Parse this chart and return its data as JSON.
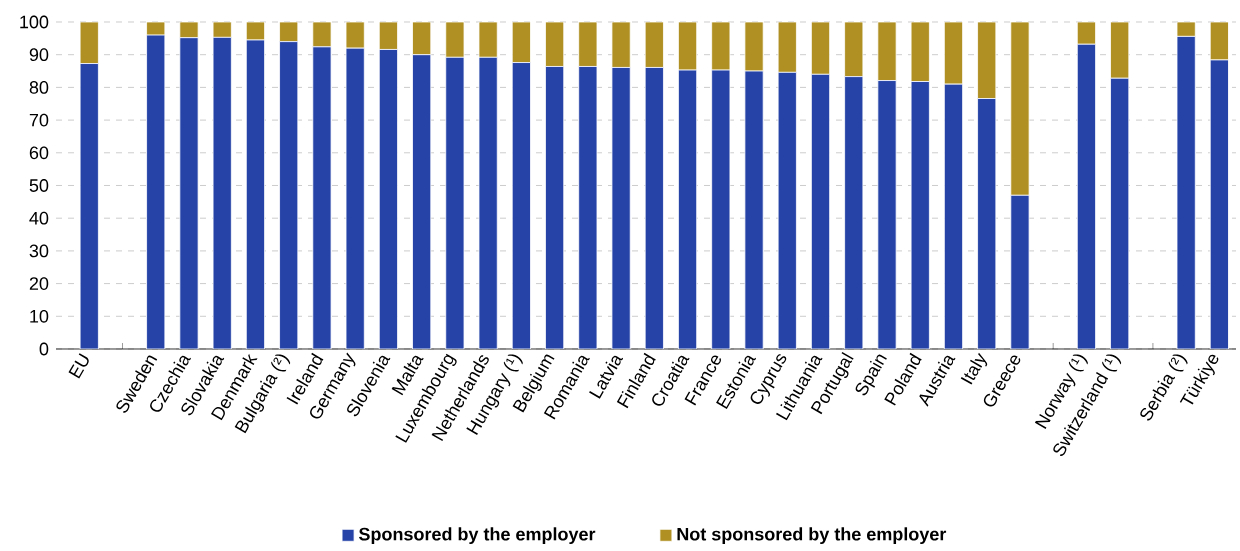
{
  "chart_data": {
    "type": "bar",
    "stacked": true,
    "categories": [
      "EU",
      null,
      "Sweden",
      "Czechia",
      "Slovakia",
      "Denmark",
      "Bulgaria (²)",
      "Ireland",
      "Germany",
      "Slovenia",
      "Malta",
      "Luxembourg",
      "Netherlands",
      "Hungary (¹)",
      "Belgium",
      "Romania",
      "Latvia",
      "Finland",
      "Croatia",
      "France",
      "Estonia",
      "Cyprus",
      "Lithuania",
      "Portugal",
      "Spain",
      "Poland",
      "Austria",
      "Italy",
      "Greece",
      null,
      "Norway (¹)",
      "Switzerland (¹)",
      null,
      "Serbia (²)",
      "Türkiye"
    ],
    "series": [
      {
        "name": "Sponsored by the employer",
        "color": "#2644a8",
        "values": [
          87.3,
          null,
          96,
          95.2,
          95.3,
          94.5,
          94,
          92.4,
          92,
          91.6,
          90,
          89.2,
          89.2,
          87.6,
          86.4,
          86.4,
          86.1,
          86.1,
          85.3,
          85.3,
          85,
          84.6,
          84,
          83.3,
          82.1,
          81.8,
          81,
          76.6,
          47,
          null,
          93.2,
          82.8,
          null,
          95.6,
          88.4
        ]
      },
      {
        "name": "Not sponsored by the employer",
        "color": "#b09022",
        "values": [
          12.7,
          null,
          4,
          4.8,
          4.7,
          5.5,
          6,
          7.6,
          8,
          8.4,
          10,
          10.8,
          10.8,
          12.4,
          13.6,
          13.6,
          13.9,
          13.9,
          14.7,
          14.7,
          15,
          15.4,
          16,
          16.7,
          17.9,
          18.2,
          19,
          23.4,
          53,
          null,
          6.8,
          17.2,
          null,
          4.4,
          11.6
        ]
      }
    ],
    "ylim": [
      0,
      100
    ],
    "yticks": [
      0,
      10,
      20,
      30,
      40,
      50,
      60,
      70,
      80,
      90,
      100
    ],
    "grid": "y",
    "legend": "bottom"
  }
}
